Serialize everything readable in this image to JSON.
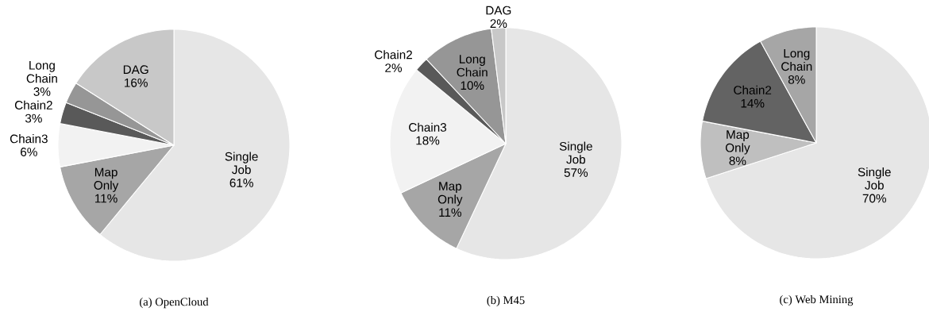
{
  "chart_data": [
    {
      "type": "pie",
      "title": "(a)  OpenCloud",
      "categories": [
        "Single Job",
        "Map Only",
        "Chain3",
        "Chain2",
        "Long Chain",
        "DAG"
      ],
      "values": [
        61,
        11,
        6,
        3,
        3,
        16
      ],
      "value_labels": [
        "61%",
        "11%",
        "6%",
        "3%",
        "3%",
        "16%"
      ],
      "colors": [
        "#e6e6e6",
        "#a6a6a6",
        "#f2f2f2",
        "#595959",
        "#969696",
        "#c8c8c8"
      ]
    },
    {
      "type": "pie",
      "title": "(b)  M45",
      "categories": [
        "Single Job",
        "Map Only",
        "Chain3",
        "Chain2",
        "Long Chain",
        "DAG"
      ],
      "values": [
        57,
        11,
        18,
        2,
        10,
        2
      ],
      "value_labels": [
        "57%",
        "11%",
        "18%",
        "2%",
        "10%",
        "2%"
      ],
      "colors": [
        "#e6e6e6",
        "#a6a6a6",
        "#f2f2f2",
        "#595959",
        "#969696",
        "#c8c8c8"
      ]
    },
    {
      "type": "pie",
      "title": "(c)  Web Mining",
      "categories": [
        "Single Job",
        "Map Only",
        "Chain2",
        "Long Chain"
      ],
      "values": [
        70,
        8,
        14,
        8
      ],
      "value_labels": [
        "70%",
        "8%",
        "14%",
        "8%"
      ],
      "colors": [
        "#e6e6e6",
        "#bfbfbf",
        "#636363",
        "#a6a6a6"
      ]
    }
  ]
}
